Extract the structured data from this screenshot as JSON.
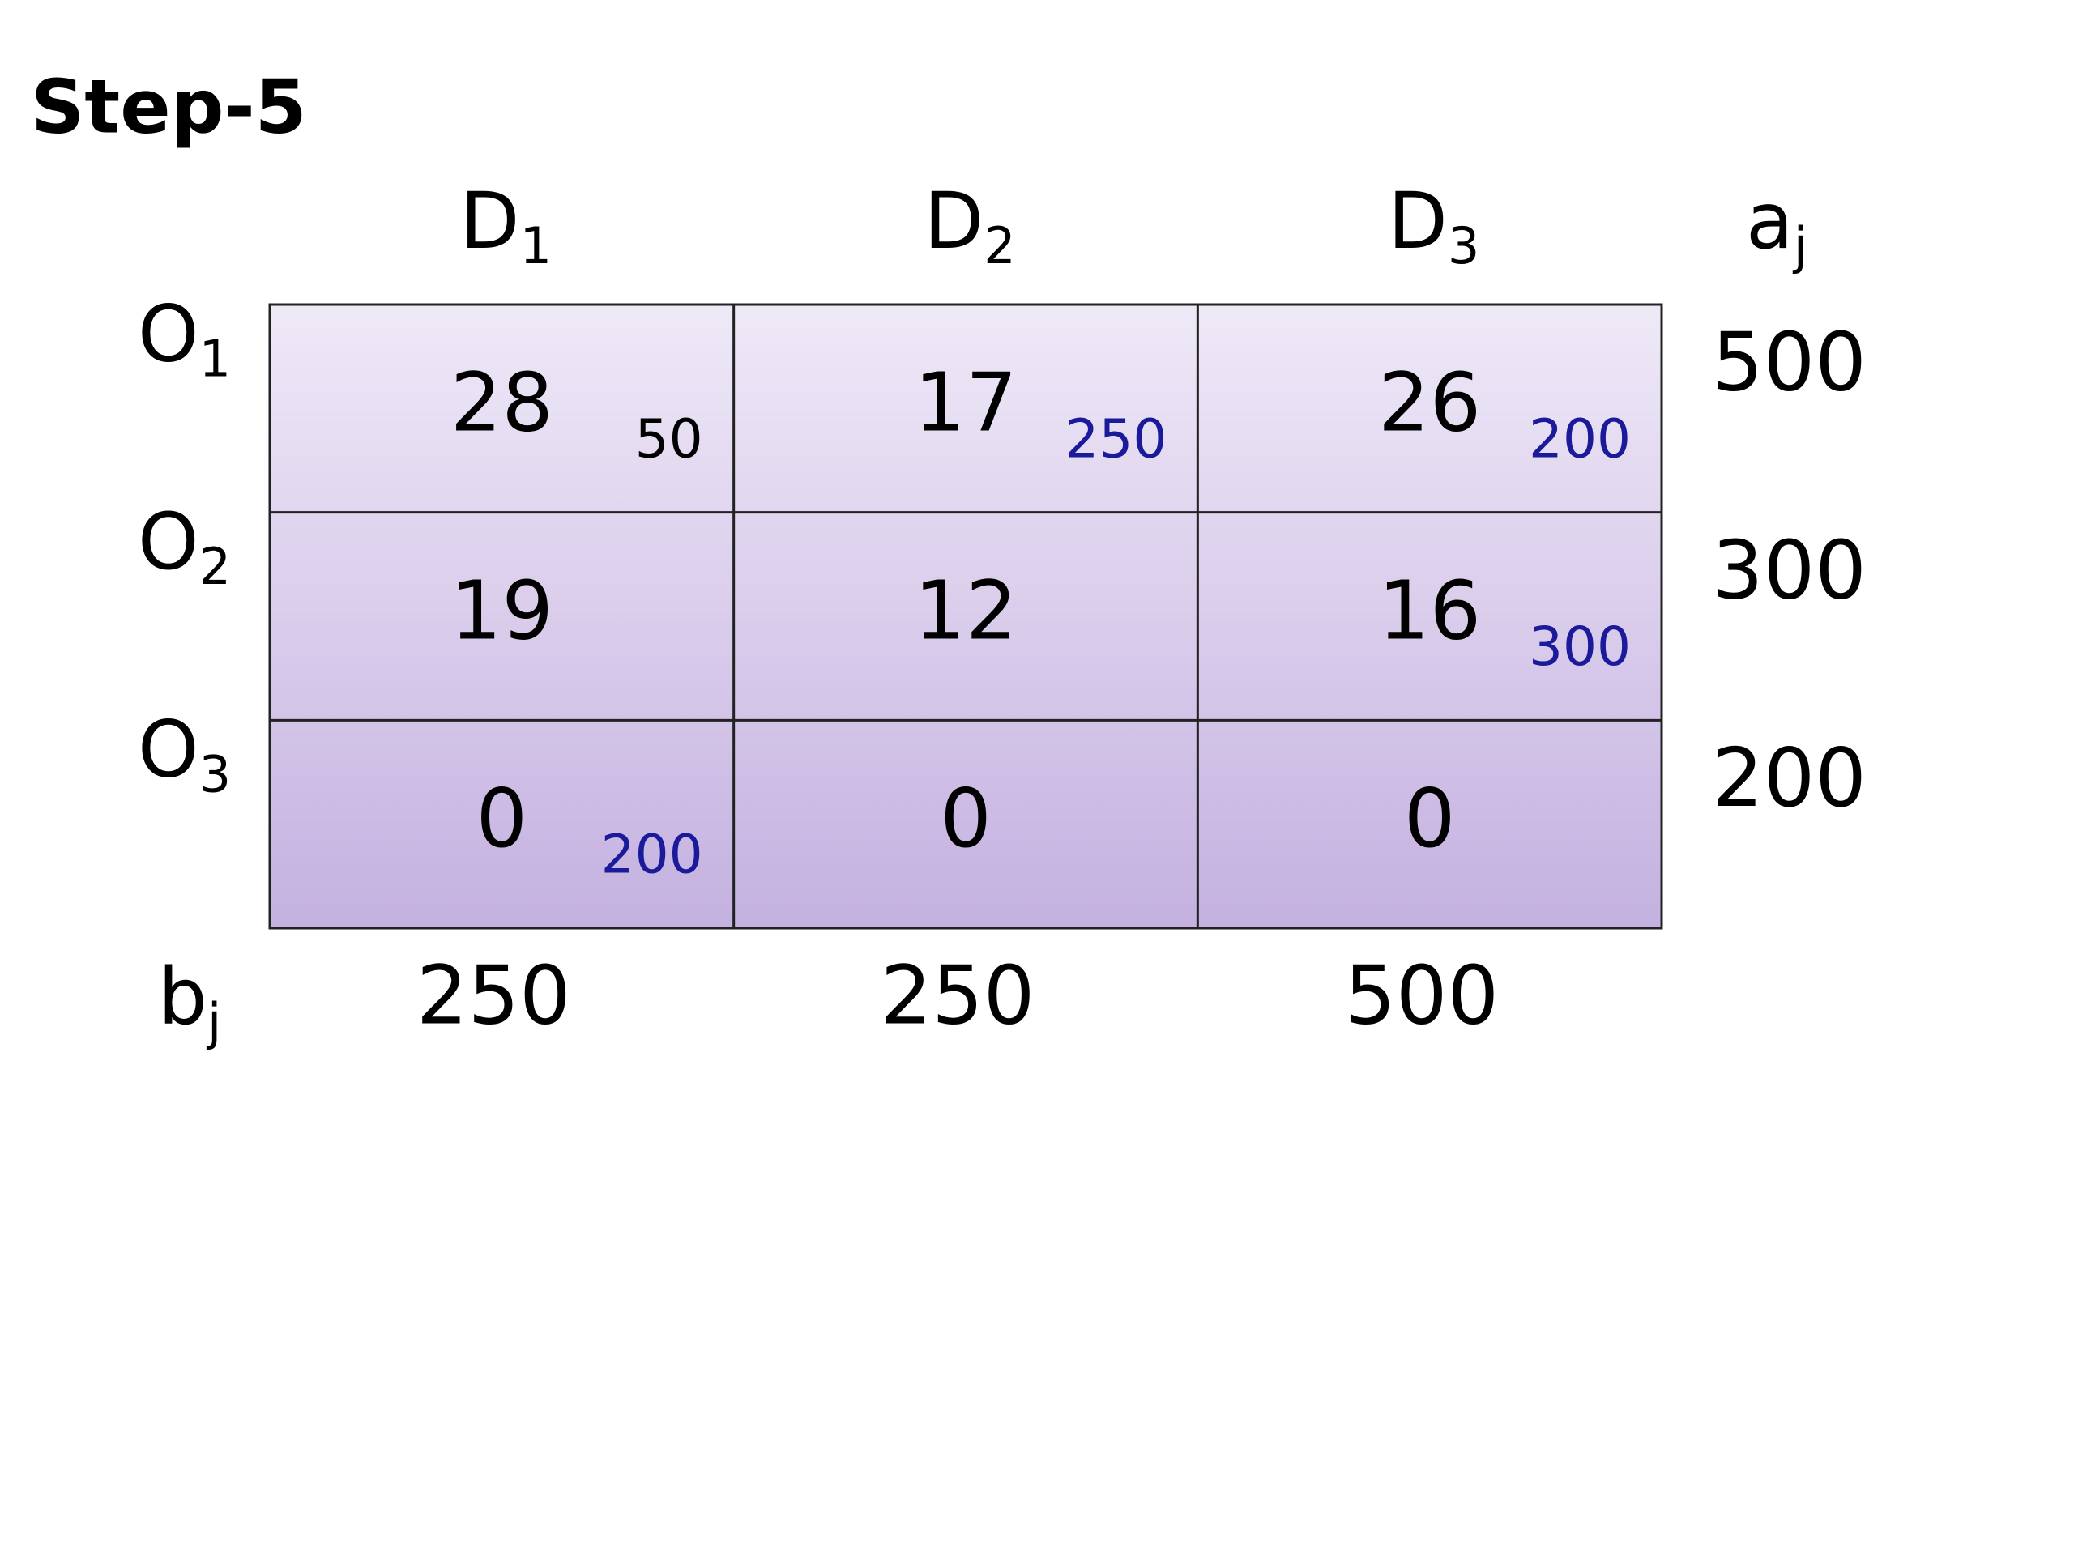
{
  "title": "Step-5",
  "column_headers": [
    {
      "main": "D",
      "sub": "1"
    },
    {
      "main": "D",
      "sub": "2"
    },
    {
      "main": "D",
      "sub": "3"
    }
  ],
  "supply_header": {
    "main": "a",
    "sub": "j"
  },
  "demand_header": {
    "main": "b",
    "sub": "j"
  },
  "rows": [
    {
      "label": {
        "main": "O",
        "sub": "1"
      },
      "supply": 500,
      "cells": [
        {
          "cost": 28,
          "allocation": 50,
          "allocation_color": "#000000"
        },
        {
          "cost": 17,
          "allocation": 250,
          "allocation_color": "#1a1a9a"
        },
        {
          "cost": 26,
          "allocation": 200,
          "allocation_color": "#1a1a9a"
        }
      ]
    },
    {
      "label": {
        "main": "O",
        "sub": "2"
      },
      "supply": 300,
      "cells": [
        {
          "cost": 19
        },
        {
          "cost": 12
        },
        {
          "cost": 16,
          "allocation": 300,
          "allocation_color": "#1a1a9a"
        }
      ]
    },
    {
      "label": {
        "main": "O",
        "sub": "3"
      },
      "supply": 200,
      "cells": [
        {
          "cost": 0,
          "allocation": 200,
          "allocation_color": "#1a1a9a"
        },
        {
          "cost": 0
        },
        {
          "cost": 0
        }
      ]
    }
  ],
  "demand": [
    250,
    250,
    500
  ]
}
